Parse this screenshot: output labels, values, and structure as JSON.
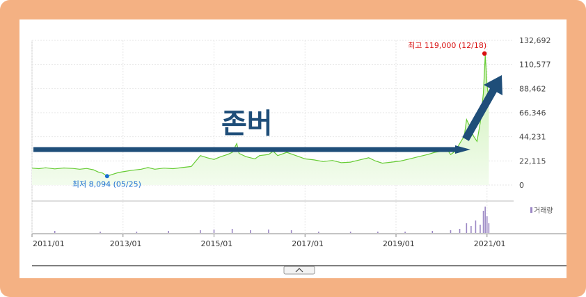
{
  "chart_data": {
    "type": "area",
    "y_ticks": [
      "132,692",
      "110,577",
      "88,462",
      "66,346",
      "44,231",
      "22,115",
      "0"
    ],
    "ylim": [
      0,
      132692
    ],
    "x_ticks": [
      {
        "label": "2011/01",
        "t": 2011.0
      },
      {
        "label": "2013/01",
        "t": 2013.0
      },
      {
        "label": "2015/01",
        "t": 2015.0
      },
      {
        "label": "2017/01",
        "t": 2017.0
      },
      {
        "label": "2019/01",
        "t": 2019.0
      },
      {
        "label": "2021/01",
        "t": 2021.0
      }
    ],
    "xlim": [
      2011.0,
      2021.6
    ],
    "series": [
      {
        "points": [
          [
            2011.0,
            15500
          ],
          [
            2011.15,
            15000
          ],
          [
            2011.3,
            15800
          ],
          [
            2011.5,
            14800
          ],
          [
            2011.7,
            15600
          ],
          [
            2011.9,
            15200
          ],
          [
            2012.05,
            14500
          ],
          [
            2012.2,
            15200
          ],
          [
            2012.35,
            14000
          ],
          [
            2012.45,
            12000
          ],
          [
            2012.55,
            11000
          ],
          [
            2012.65,
            8094
          ],
          [
            2012.75,
            9500
          ],
          [
            2012.9,
            11500
          ],
          [
            2013.05,
            12500
          ],
          [
            2013.2,
            13500
          ],
          [
            2013.4,
            14500
          ],
          [
            2013.55,
            16000
          ],
          [
            2013.7,
            14500
          ],
          [
            2013.9,
            15500
          ],
          [
            2014.1,
            15000
          ],
          [
            2014.3,
            16000
          ],
          [
            2014.5,
            17000
          ],
          [
            2014.6,
            22000
          ],
          [
            2014.7,
            27000
          ],
          [
            2014.85,
            25000
          ],
          [
            2015.0,
            23500
          ],
          [
            2015.15,
            26000
          ],
          [
            2015.3,
            28000
          ],
          [
            2015.4,
            30000
          ],
          [
            2015.5,
            38000
          ],
          [
            2015.55,
            29000
          ],
          [
            2015.7,
            26000
          ],
          [
            2015.9,
            24000
          ],
          [
            2016.0,
            27000
          ],
          [
            2016.2,
            28000
          ],
          [
            2016.3,
            31000
          ],
          [
            2016.4,
            27000
          ],
          [
            2016.6,
            30000
          ],
          [
            2016.8,
            27000
          ],
          [
            2017.0,
            24000
          ],
          [
            2017.2,
            23000
          ],
          [
            2017.4,
            21500
          ],
          [
            2017.6,
            22500
          ],
          [
            2017.8,
            20500
          ],
          [
            2018.0,
            21000
          ],
          [
            2018.2,
            23000
          ],
          [
            2018.4,
            25000
          ],
          [
            2018.55,
            22000
          ],
          [
            2018.7,
            20000
          ],
          [
            2018.9,
            21000
          ],
          [
            2019.1,
            22000
          ],
          [
            2019.3,
            24000
          ],
          [
            2019.5,
            26000
          ],
          [
            2019.7,
            28000
          ],
          [
            2019.85,
            30000
          ],
          [
            2020.0,
            31000
          ],
          [
            2020.1,
            34000
          ],
          [
            2020.2,
            28000
          ],
          [
            2020.3,
            31000
          ],
          [
            2020.4,
            38000
          ],
          [
            2020.5,
            45000
          ],
          [
            2020.55,
            60000
          ],
          [
            2020.62,
            54000
          ],
          [
            2020.7,
            45000
          ],
          [
            2020.78,
            40000
          ],
          [
            2020.85,
            57000
          ],
          [
            2020.92,
            84000
          ],
          [
            2020.96,
            119000
          ],
          [
            2021.0,
            92000
          ],
          [
            2021.04,
            78000
          ]
        ]
      }
    ],
    "annotations": {
      "low": {
        "label": "최저 8,094 (05/25)",
        "t": 2012.65,
        "value": 8094
      },
      "high": {
        "label": "최고 119,000 (12/18)",
        "t": 2020.96,
        "value": 119000
      }
    },
    "volume_legend": "거래량",
    "volume": [
      [
        2011.5,
        3
      ],
      [
        2012.5,
        2
      ],
      [
        2013.3,
        2
      ],
      [
        2014.0,
        3
      ],
      [
        2014.7,
        4
      ],
      [
        2015.0,
        5
      ],
      [
        2015.4,
        6
      ],
      [
        2015.8,
        4
      ],
      [
        2016.2,
        5
      ],
      [
        2016.7,
        4
      ],
      [
        2017.3,
        2
      ],
      [
        2018.0,
        2
      ],
      [
        2018.6,
        2
      ],
      [
        2019.2,
        2
      ],
      [
        2019.8,
        3
      ],
      [
        2020.2,
        4
      ],
      [
        2020.4,
        6
      ],
      [
        2020.55,
        14
      ],
      [
        2020.65,
        10
      ],
      [
        2020.75,
        18
      ],
      [
        2020.85,
        12
      ],
      [
        2020.92,
        32
      ],
      [
        2020.96,
        38
      ],
      [
        2021.0,
        24
      ],
      [
        2021.04,
        14
      ]
    ],
    "grid": true,
    "overlay_text": "존버",
    "colors": {
      "line": "#66cc33",
      "fill": "#e3f7d3",
      "arrow": "#1f4e79",
      "low": "#1a6fd1",
      "high": "#d81010",
      "volume": "#9b87c4"
    }
  }
}
